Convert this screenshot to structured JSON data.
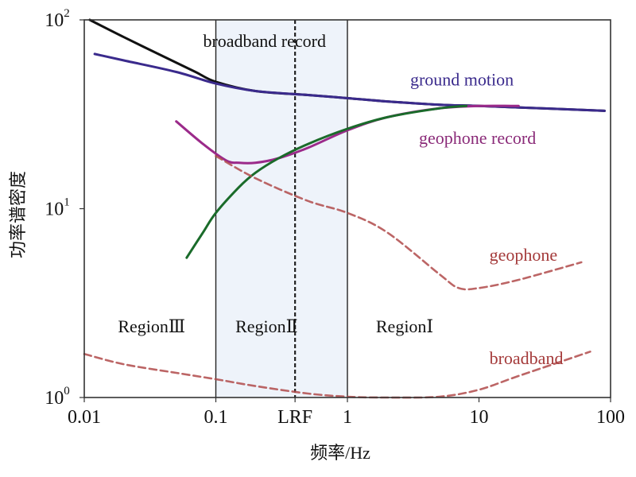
{
  "chart_data": {
    "type": "line",
    "title": "",
    "xlabel": "频率/Hz",
    "ylabel": "功率谱密度",
    "xscale": "log",
    "yscale": "log",
    "xlim": [
      0.01,
      100
    ],
    "ylim": [
      1,
      100
    ],
    "x_ticks": [
      {
        "value": 0.01,
        "label": "0.01"
      },
      {
        "value": 0.1,
        "label": "0.1"
      },
      {
        "value": 0.4,
        "label": "LRF"
      },
      {
        "value": 1,
        "label": "1"
      },
      {
        "value": 10,
        "label": "10"
      },
      {
        "value": 100,
        "label": "100"
      }
    ],
    "y_ticks": [
      {
        "value": 1,
        "base": "10",
        "exp": "0"
      },
      {
        "value": 10,
        "base": "10",
        "exp": "1"
      },
      {
        "value": 100,
        "base": "10",
        "exp": "2"
      }
    ],
    "vertical_lines": [
      {
        "x": 0.1,
        "style": "solid"
      },
      {
        "x": 0.4,
        "style": "dashed"
      },
      {
        "x": 1,
        "style": "solid"
      }
    ],
    "shaded_region": [
      0.1,
      1
    ],
    "region_labels": [
      "RegionⅢ",
      "RegionⅡ",
      "RegionⅠ"
    ],
    "series": [
      {
        "name": "broadband record",
        "color": "#111111",
        "style": "solid",
        "x": [
          0.011,
          0.02,
          0.04,
          0.07,
          0.1,
          0.2,
          0.5,
          1,
          2,
          5,
          10,
          30,
          90
        ],
        "y": [
          100,
          81,
          64,
          53,
          47,
          42,
          40,
          38.5,
          37,
          35.5,
          35,
          34,
          33
        ]
      },
      {
        "name": "ground motion",
        "color": "#3a2a8c",
        "style": "solid",
        "x": [
          0.012,
          0.02,
          0.05,
          0.1,
          0.2,
          0.5,
          1,
          2,
          5,
          10,
          30,
          90
        ],
        "y": [
          66,
          61,
          53,
          46,
          42,
          40,
          38.5,
          37,
          35.5,
          35,
          34,
          33
        ]
      },
      {
        "name": "geophone record",
        "color": "#9b2a8a",
        "style": "solid",
        "x": [
          0.05,
          0.08,
          0.12,
          0.15,
          0.2,
          0.3,
          0.5,
          1,
          2,
          5,
          10,
          20
        ],
        "y": [
          29,
          22,
          18,
          17.5,
          17.5,
          18.5,
          21,
          26,
          30.5,
          34,
          35,
          35
        ]
      },
      {
        "name": "",
        "color": "#1a6b2a",
        "style": "solid",
        "x": [
          0.06,
          0.08,
          0.1,
          0.15,
          0.2,
          0.3,
          0.5,
          1,
          2,
          5,
          8
        ],
        "y": [
          5.5,
          7.5,
          9.5,
          13,
          15.5,
          18.5,
          22,
          26.5,
          30.5,
          34,
          35
        ]
      },
      {
        "name": "geophone",
        "color": "#b04a4a",
        "style": "dashed",
        "x": [
          0.1,
          0.2,
          0.5,
          1,
          2,
          5,
          7,
          10,
          20,
          60
        ],
        "y": [
          19,
          14.5,
          11,
          9.5,
          7.5,
          4.5,
          3.8,
          3.8,
          4.2,
          5.2
        ]
      },
      {
        "name": "broadband",
        "color": "#b04a4a",
        "style": "dashed",
        "x": [
          0.01,
          0.02,
          0.05,
          0.1,
          0.2,
          0.5,
          1,
          2,
          5,
          10,
          20,
          70
        ],
        "y": [
          1.7,
          1.5,
          1.35,
          1.25,
          1.15,
          1.05,
          1.01,
          1,
          1.01,
          1.1,
          1.3,
          1.75
        ]
      }
    ],
    "annotations": [
      {
        "text": "broadband record",
        "x": 0.08,
        "y": 72,
        "color": "#111111"
      },
      {
        "text": "ground motion",
        "x": 3,
        "y": 45,
        "color": "#3a2a8c"
      },
      {
        "text": "geophone record",
        "x": 3.5,
        "y": 22,
        "color": "#8a2a78"
      },
      {
        "text": "geophone",
        "x": 12,
        "y": 5.3,
        "color": "#a43a3a"
      },
      {
        "text": "broadband",
        "x": 12,
        "y": 1.5,
        "color": "#a43a3a"
      }
    ],
    "grid": false,
    "legend": "none"
  }
}
